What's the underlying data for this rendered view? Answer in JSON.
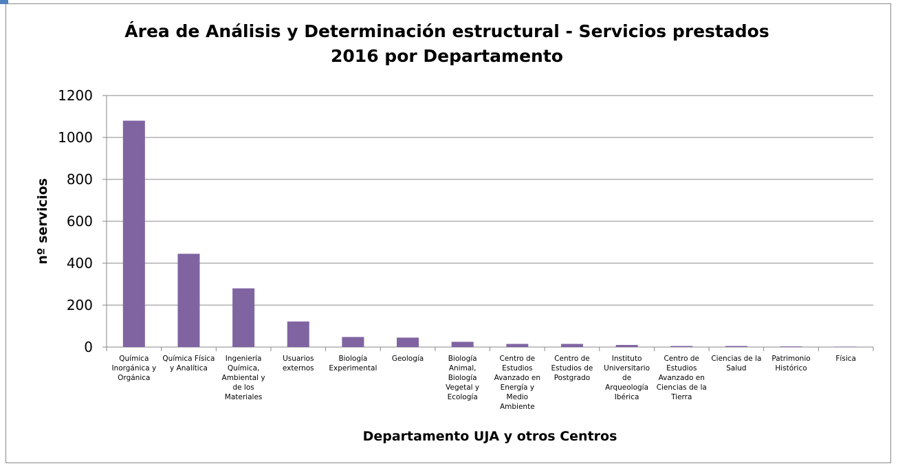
{
  "chart_data": {
    "type": "bar",
    "title": "Área de Análisis y Determinación estructural - Servicios prestados 2016 por Departamento",
    "x_label": "Departamento UJA y otros Centros",
    "y_label": "nº servicios",
    "categories": [
      "Química Inorgánica y Orgánica",
      "Química Física y Analítica",
      "Ingeniería Química, Ambiental y de los Materiales",
      "Usuarios externos",
      "Biología Experimental",
      "Geología",
      "Biología Animal, Biología Vegetal y Ecología",
      "Centro de Estudios Avanzado en Energía y Medio Ambiente",
      "Centro de Estudios de Postgrado",
      "Instituto Universitario de Arqueología Ibérica",
      "Centro de Estudios Avanzado en Ciencias de la Tierra",
      "Ciencias de la Salud",
      "Patrimonio Histórico",
      "Física"
    ],
    "values": [
      1080,
      445,
      280,
      122,
      48,
      45,
      25,
      15,
      15,
      10,
      5,
      5,
      3,
      2
    ],
    "color": "#8064a2",
    "ylim": [
      0,
      1200
    ],
    "yticks": [
      0,
      200,
      400,
      600,
      800,
      1000,
      1200
    ],
    "grid": true
  }
}
